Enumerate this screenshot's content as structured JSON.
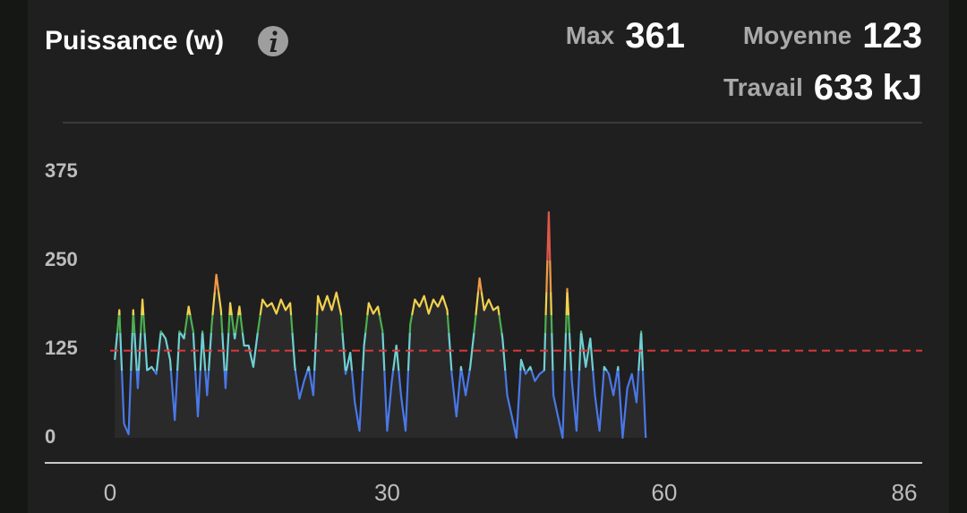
{
  "chart_data": {
    "type": "line",
    "title": "Puissance (w)",
    "stats": [
      {
        "label": "Max",
        "value": 361
      },
      {
        "label": "Moyenne",
        "value": 123
      },
      {
        "label": "Travail",
        "value": 633,
        "unit": "kJ"
      }
    ],
    "mean_line_color": "#d9393b",
    "color_zones": [
      {
        "from": 0,
        "color": "#4a78e8"
      },
      {
        "from": 95,
        "color": "#6fd0d4"
      },
      {
        "from": 148,
        "color": "#4caf50"
      },
      {
        "from": 173,
        "color": "#f2d24e"
      },
      {
        "from": 205,
        "color": "#f19a45"
      },
      {
        "from": 250,
        "color": "#e0574a"
      }
    ],
    "xlim": [
      0,
      86
    ],
    "xticks": [
      0,
      30,
      60,
      86
    ],
    "ylim": [
      0,
      375
    ],
    "yticks": [
      0,
      125,
      250,
      375
    ],
    "x": [
      0.5,
      1,
      1.5,
      2,
      2.5,
      3,
      3.5,
      4,
      4.5,
      5,
      5.5,
      6,
      6.5,
      7,
      7.5,
      8,
      8.5,
      9,
      9.5,
      10,
      10.5,
      11,
      11.5,
      12,
      12.5,
      13,
      13.5,
      14,
      14.5,
      15,
      15.5,
      16,
      16.5,
      17,
      17.5,
      18,
      18.5,
      19,
      19.5,
      20,
      20.5,
      21,
      21.5,
      22,
      22.5,
      23,
      23.5,
      24,
      24.5,
      25,
      25.5,
      26,
      26.5,
      27,
      27.5,
      28,
      28.5,
      29,
      29.5,
      30,
      30.5,
      31,
      31.5,
      32,
      32.5,
      33,
      33.5,
      34,
      34.5,
      35,
      35.5,
      36,
      36.5,
      37,
      37.5,
      38,
      38.5,
      39,
      39.5,
      40,
      40.5,
      41,
      41.5,
      42,
      42.5,
      43,
      43.5,
      44,
      44.5,
      45,
      45.5,
      46,
      46.5,
      47,
      47.5,
      48,
      48.5,
      49,
      49.5,
      50,
      50.5,
      51,
      51.5,
      52,
      52.5,
      53,
      53.5,
      54,
      54.5,
      55,
      55.5,
      56,
      56.5,
      57,
      57.5,
      58
    ],
    "values": [
      110,
      180,
      20,
      5,
      180,
      70,
      195,
      95,
      100,
      90,
      150,
      140,
      110,
      25,
      150,
      140,
      185,
      150,
      30,
      150,
      60,
      160,
      230,
      180,
      70,
      190,
      140,
      185,
      130,
      130,
      100,
      150,
      195,
      185,
      190,
      175,
      195,
      180,
      190,
      100,
      55,
      80,
      100,
      60,
      200,
      180,
      200,
      180,
      205,
      175,
      90,
      120,
      50,
      10,
      130,
      190,
      175,
      185,
      150,
      10,
      80,
      130,
      60,
      10,
      160,
      195,
      185,
      200,
      175,
      195,
      185,
      200,
      180,
      90,
      30,
      100,
      60,
      100,
      160,
      225,
      180,
      195,
      180,
      185,
      140,
      60,
      30,
      0,
      110,
      90,
      100,
      80,
      90,
      95,
      318,
      60,
      30,
      0,
      210,
      80,
      10,
      150,
      100,
      140,
      60,
      10,
      100,
      90,
      60,
      100,
      0,
      70,
      90,
      50,
      150,
      0
    ]
  }
}
